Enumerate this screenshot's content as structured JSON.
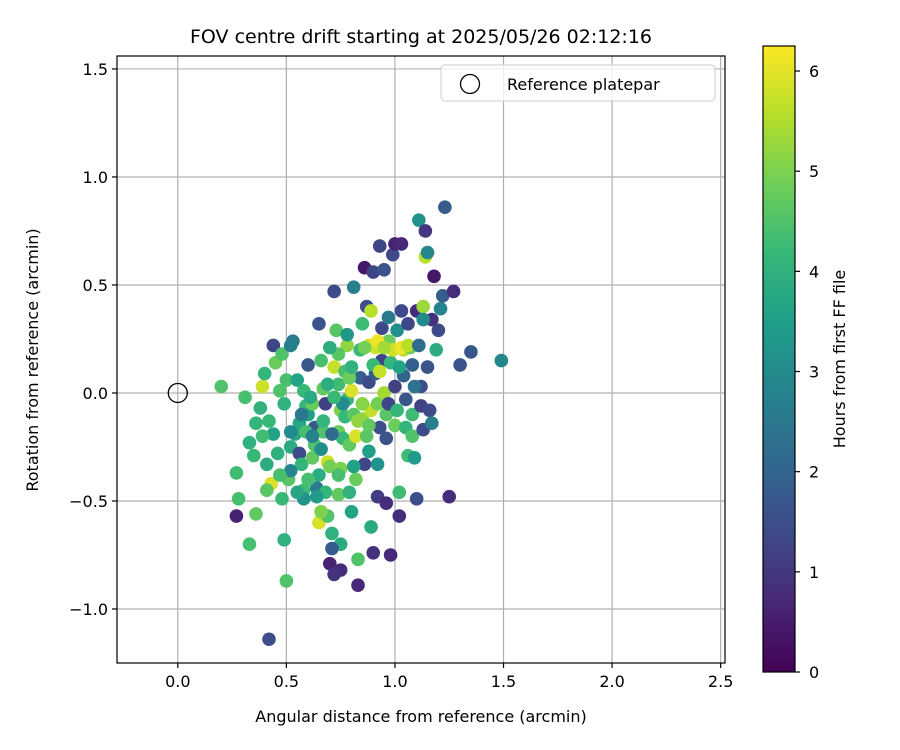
{
  "chart_data": {
    "type": "scatter",
    "title": "FOV centre drift starting at 2025/05/26 02:12:16",
    "xlabel": "Angular distance from reference (arcmin)",
    "ylabel": "Rotation from reference (arcmin)",
    "xlim": [
      -0.28,
      2.52
    ],
    "ylim": [
      -1.25,
      1.56
    ],
    "xticks": [
      0.0,
      0.5,
      1.0,
      1.5,
      2.0,
      2.5
    ],
    "xtick_labels": [
      "0.0",
      "0.5",
      "1.0",
      "1.5",
      "2.0",
      "2.5"
    ],
    "yticks": [
      -1.0,
      -0.5,
      0.0,
      0.5,
      1.0,
      1.5
    ],
    "ytick_labels": [
      "−1.0",
      "−0.5",
      "0.0",
      "0.5",
      "1.0",
      "1.5"
    ],
    "grid": true,
    "legend": {
      "position": "top-right",
      "entries": [
        "Reference platepar"
      ]
    },
    "reference_point": {
      "x": 0.0,
      "y": 0.0,
      "label": "Reference platepar"
    },
    "colorbar": {
      "label": "Hours from first FF file",
      "range": [
        0,
        6.25
      ],
      "ticks": [
        0,
        1,
        2,
        3,
        4,
        5,
        6
      ],
      "tick_labels": [
        "0",
        "1",
        "2",
        "3",
        "4",
        "5",
        "6"
      ],
      "colormap": "viridis"
    },
    "colormap_stops": [
      "#440154",
      "#482878",
      "#3e4a89",
      "#31688e",
      "#26828e",
      "#1f9e89",
      "#35b779",
      "#6ece58",
      "#b5de2b",
      "#fde725"
    ],
    "series": [
      {
        "points": [
          [
            0.2,
            0.03,
            4.5
          ],
          [
            0.31,
            -0.02,
            4.4
          ],
          [
            0.27,
            -0.37,
            4.3
          ],
          [
            0.28,
            -0.49,
            4.4
          ],
          [
            0.27,
            -0.57,
            0.6
          ],
          [
            0.33,
            -0.7,
            4.4
          ],
          [
            0.36,
            -0.56,
            4.7
          ],
          [
            0.35,
            -0.29,
            4.2
          ],
          [
            0.38,
            -0.07,
            4.0
          ],
          [
            0.39,
            0.03,
            5.8
          ],
          [
            0.4,
            0.09,
            4.1
          ],
          [
            0.42,
            -0.13,
            4.2
          ],
          [
            0.43,
            -0.42,
            5.9
          ],
          [
            0.41,
            -0.45,
            4.6
          ],
          [
            0.44,
            0.22,
            1.3
          ],
          [
            0.45,
            0.14,
            4.8
          ],
          [
            0.47,
            0.01,
            4.5
          ],
          [
            0.48,
            0.18,
            4.5
          ],
          [
            0.49,
            -0.05,
            4.0
          ],
          [
            0.5,
            0.06,
            4.4
          ],
          [
            0.49,
            -0.68,
            4.0
          ],
          [
            0.5,
            -0.87,
            4.5
          ],
          [
            0.51,
            -0.4,
            4.6
          ],
          [
            0.52,
            -0.25,
            3.8
          ],
          [
            0.53,
            0.24,
            2.6
          ],
          [
            0.52,
            0.22,
            2.7
          ],
          [
            0.55,
            0.06,
            3.6
          ],
          [
            0.54,
            -0.19,
            3.7
          ],
          [
            0.56,
            -0.28,
            1.4
          ],
          [
            0.57,
            -0.33,
            4.1
          ],
          [
            0.58,
            -0.45,
            4.3
          ],
          [
            0.58,
            -0.49,
            3.2
          ],
          [
            0.56,
            -0.14,
            3.7
          ],
          [
            0.6,
            0.13,
            1.7
          ],
          [
            0.59,
            -0.06,
            4.2
          ],
          [
            0.6,
            -0.1,
            3.5
          ],
          [
            0.62,
            -0.05,
            4.8
          ],
          [
            0.63,
            -0.16,
            1.8
          ],
          [
            0.63,
            -0.24,
            4.5
          ],
          [
            0.65,
            -0.38,
            3.9
          ],
          [
            0.64,
            -0.44,
            2.6
          ],
          [
            0.65,
            -0.6,
            5.9
          ],
          [
            0.65,
            0.32,
            1.6
          ],
          [
            0.66,
            0.15,
            4.4
          ],
          [
            0.67,
            0.02,
            4.7
          ],
          [
            0.68,
            -0.05,
            1.2
          ],
          [
            0.67,
            -0.18,
            4.5
          ],
          [
            0.69,
            -0.32,
            5.8
          ],
          [
            0.7,
            -0.34,
            4.9
          ],
          [
            0.68,
            -0.46,
            4.1
          ],
          [
            0.69,
            -0.57,
            4.5
          ],
          [
            0.7,
            -0.79,
            0.6
          ],
          [
            0.71,
            -0.65,
            4.0
          ],
          [
            0.72,
            0.12,
            5.7
          ],
          [
            0.73,
            0.29,
            4.6
          ],
          [
            0.72,
            0.47,
            1.4
          ],
          [
            0.74,
            0.04,
            4.3
          ],
          [
            0.75,
            -0.08,
            5.0
          ],
          [
            0.74,
            -0.18,
            4.8
          ],
          [
            0.76,
            -0.21,
            4.2
          ],
          [
            0.75,
            -0.35,
            5.0
          ],
          [
            0.74,
            -0.47,
            4.7
          ],
          [
            0.75,
            -0.7,
            3.8
          ],
          [
            0.75,
            -0.82,
            0.8
          ],
          [
            0.77,
            0.1,
            4.4
          ],
          [
            0.78,
            0.22,
            5.2
          ],
          [
            0.78,
            -0.03,
            4.1
          ],
          [
            0.77,
            -0.11,
            4.2
          ],
          [
            0.79,
            -0.24,
            4.7
          ],
          [
            0.79,
            -0.46,
            4.0
          ],
          [
            0.8,
            -0.55,
            3.6
          ],
          [
            0.81,
            0.49,
            2.7
          ],
          [
            0.8,
            0.01,
            5.9
          ],
          [
            0.81,
            -0.1,
            4.6
          ],
          [
            0.82,
            -0.2,
            5.9
          ],
          [
            0.82,
            -0.4,
            4.8
          ],
          [
            0.83,
            -0.77,
            4.5
          ],
          [
            0.83,
            -0.89,
            0.7
          ],
          [
            0.84,
            0.2,
            4.2
          ],
          [
            0.84,
            0.07,
            1.9
          ],
          [
            0.85,
            -0.12,
            5.2
          ],
          [
            0.86,
            -0.33,
            1.3
          ],
          [
            0.86,
            0.58,
            0.4
          ],
          [
            0.87,
            0.4,
            1.5
          ],
          [
            0.88,
            0.22,
            5.9
          ],
          [
            0.88,
            0.05,
            1.4
          ],
          [
            0.89,
            0.38,
            5.6
          ],
          [
            0.89,
            -0.08,
            5.7
          ],
          [
            0.88,
            -0.27,
            3.5
          ],
          [
            0.89,
            -0.62,
            3.8
          ],
          [
            0.9,
            -0.74,
            0.9
          ],
          [
            0.9,
            0.56,
            1.3
          ],
          [
            0.91,
            0.21,
            5.8
          ],
          [
            0.91,
            0.09,
            1.8
          ],
          [
            0.92,
            -0.05,
            4.9
          ],
          [
            0.93,
            -0.16,
            1.5
          ],
          [
            0.92,
            -0.33,
            3.2
          ],
          [
            0.92,
            -0.48,
            1.1
          ],
          [
            0.93,
            0.68,
            1.3
          ],
          [
            0.94,
            0.3,
            1.4
          ],
          [
            0.94,
            0.15,
            1.3
          ],
          [
            0.95,
            0.0,
            5.4
          ],
          [
            0.96,
            -0.1,
            4.6
          ],
          [
            0.96,
            -0.21,
            1.6
          ],
          [
            0.96,
            -0.51,
            0.8
          ],
          [
            0.95,
            0.57,
            1.6
          ],
          [
            0.97,
            0.24,
            4.8
          ],
          [
            0.98,
            0.14,
            4.1
          ],
          [
            0.97,
            -0.05,
            1.3
          ],
          [
            0.98,
            -0.75,
            0.7
          ],
          [
            0.99,
            0.64,
            1.4
          ],
          [
            1.0,
            0.69,
            0.6
          ],
          [
            1.01,
            0.29,
            3.1
          ],
          [
            1.0,
            0.03,
            1.2
          ],
          [
            1.01,
            -0.08,
            4.1
          ],
          [
            1.0,
            -0.15,
            4.8
          ],
          [
            1.02,
            -0.46,
            4.3
          ],
          [
            1.02,
            -0.57,
            0.8
          ],
          [
            1.03,
            0.69,
            0.7
          ],
          [
            1.03,
            0.38,
            1.4
          ],
          [
            1.04,
            0.2,
            5.6
          ],
          [
            1.04,
            0.08,
            2.0
          ],
          [
            1.05,
            -0.03,
            1.7
          ],
          [
            1.05,
            -0.16,
            4.1
          ],
          [
            1.06,
            -0.29,
            4.3
          ],
          [
            1.06,
            0.32,
            1.3
          ],
          [
            1.07,
            0.21,
            4.8
          ],
          [
            1.08,
            -0.1,
            4.3
          ],
          [
            1.08,
            -0.2,
            4.5
          ],
          [
            1.09,
            -0.3,
            3.4
          ],
          [
            1.1,
            -0.49,
            1.5
          ],
          [
            1.1,
            0.38,
            0.8
          ],
          [
            1.11,
            0.8,
            3.2
          ],
          [
            1.12,
            0.03,
            1.5
          ],
          [
            1.12,
            -0.06,
            1.2
          ],
          [
            1.13,
            -0.17,
            1.4
          ],
          [
            1.13,
            0.4,
            5.3
          ],
          [
            1.14,
            0.63,
            5.6
          ],
          [
            1.14,
            0.75,
            1.0
          ],
          [
            1.15,
            0.65,
            2.9
          ],
          [
            1.15,
            0.12,
            1.6
          ],
          [
            1.16,
            -0.08,
            1.4
          ],
          [
            1.17,
            -0.14,
            2.7
          ],
          [
            1.17,
            0.34,
            0.9
          ],
          [
            1.18,
            0.54,
            0.4
          ],
          [
            1.19,
            0.2,
            3.9
          ],
          [
            1.2,
            0.29,
            1.4
          ],
          [
            1.21,
            0.39,
            2.8
          ],
          [
            1.22,
            0.45,
            1.8
          ],
          [
            1.23,
            0.86,
            1.8
          ],
          [
            1.25,
            -0.48,
            0.8
          ],
          [
            1.27,
            0.47,
            0.8
          ],
          [
            1.3,
            0.13,
            1.6
          ],
          [
            1.35,
            0.19,
            1.7
          ],
          [
            1.49,
            0.15,
            2.9
          ],
          [
            0.42,
            -1.14,
            1.5
          ],
          [
            0.66,
            -0.55,
            5.0
          ],
          [
            0.71,
            -0.72,
            1.8
          ],
          [
            0.72,
            -0.84,
            0.9
          ],
          [
            0.78,
            0.27,
            3.3
          ],
          [
            0.86,
            0.21,
            4.9
          ],
          [
            0.9,
            0.13,
            4.2
          ],
          [
            0.92,
            0.24,
            6.1
          ],
          [
            0.93,
            0.1,
            5.7
          ],
          [
            0.99,
            0.2,
            5.8
          ],
          [
            1.03,
            0.21,
            6.1
          ],
          [
            1.06,
            0.22,
            5.6
          ],
          [
            0.95,
            0.21,
            5.4
          ],
          [
            0.85,
            -0.05,
            5.1
          ],
          [
            0.74,
            -0.38,
            4.4
          ],
          [
            0.6,
            -0.4,
            4.4
          ],
          [
            0.55,
            -0.46,
            3.7
          ],
          [
            0.64,
            -0.48,
            3.4
          ],
          [
            0.62,
            -0.3,
            4.7
          ],
          [
            0.67,
            -0.13,
            4.1
          ],
          [
            0.59,
            -0.18,
            4.4
          ],
          [
            0.52,
            -0.36,
            2.9
          ],
          [
            0.46,
            -0.28,
            4.0
          ],
          [
            0.44,
            -0.19,
            3.6
          ],
          [
            0.41,
            -0.33,
            3.9
          ],
          [
            0.47,
            -0.38,
            4.4
          ],
          [
            0.48,
            -0.49,
            4.2
          ],
          [
            0.39,
            -0.2,
            4.3
          ],
          [
            0.36,
            -0.14,
            4.1
          ],
          [
            0.33,
            -0.23,
            4.0
          ],
          [
            0.52,
            -0.18,
            3.0
          ],
          [
            0.57,
            -0.1,
            2.5
          ],
          [
            0.62,
            -0.2,
            2.8
          ],
          [
            0.66,
            -0.26,
            3.1
          ],
          [
            0.71,
            -0.19,
            2.2
          ],
          [
            0.76,
            -0.05,
            3.0
          ],
          [
            0.81,
            -0.34,
            3.6
          ],
          [
            0.87,
            -0.2,
            4.6
          ],
          [
            0.85,
            0.32,
            4.3
          ],
          [
            0.97,
            0.35,
            2.6
          ],
          [
            1.02,
            0.12,
            3.6
          ],
          [
            1.08,
            0.13,
            1.9
          ],
          [
            1.11,
            0.22,
            2.2
          ],
          [
            1.13,
            0.34,
            3.0
          ],
          [
            1.09,
            0.03,
            2.4
          ],
          [
            0.58,
            0.01,
            4.2
          ],
          [
            0.61,
            -0.02,
            3.8
          ],
          [
            0.69,
            0.04,
            3.9
          ],
          [
            0.72,
            -0.02,
            4.2
          ],
          [
            0.79,
            0.07,
            4.8
          ],
          [
            0.83,
            -0.13,
            5.2
          ],
          [
            0.88,
            -0.15,
            4.7
          ],
          [
            0.8,
            0.12,
            4.0
          ],
          [
            0.74,
            0.18,
            4.6
          ],
          [
            0.7,
            0.21,
            3.9
          ]
        ]
      }
    ]
  }
}
